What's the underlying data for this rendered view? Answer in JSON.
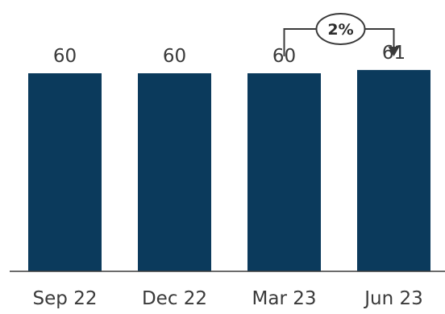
{
  "chart_data": {
    "type": "bar",
    "categories": [
      "Sep 22",
      "Dec 22",
      "Mar 23",
      "Jun 23"
    ],
    "values": [
      60,
      60,
      60,
      61
    ],
    "value_labels": [
      "60",
      "60",
      "60",
      "61"
    ],
    "title": "",
    "xlabel": "",
    "ylabel": "",
    "ylim": [
      0,
      70
    ],
    "grid": false,
    "legend": "none",
    "bar_color": "#0b3a5c",
    "annotation": {
      "label": "2%",
      "from_category": "Mar 23",
      "to_category": "Jun 23",
      "color": "#3a3a3a"
    }
  }
}
